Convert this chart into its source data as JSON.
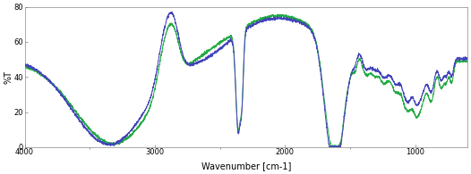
{
  "xlabel": "Wavenumber [cm-1]",
  "ylabel": "%T",
  "xlim": [
    4000,
    600
  ],
  "ylim": [
    0,
    80
  ],
  "yticks": [
    0,
    20,
    40,
    60,
    80
  ],
  "xticks": [
    4000,
    3000,
    2000,
    1000
  ],
  "line1_color": "#4444bb",
  "line2_color": "#22aa44",
  "bg_color": "#ffffff",
  "linewidth": 0.7,
  "figsize": [
    5.26,
    1.95
  ],
  "dpi": 100
}
